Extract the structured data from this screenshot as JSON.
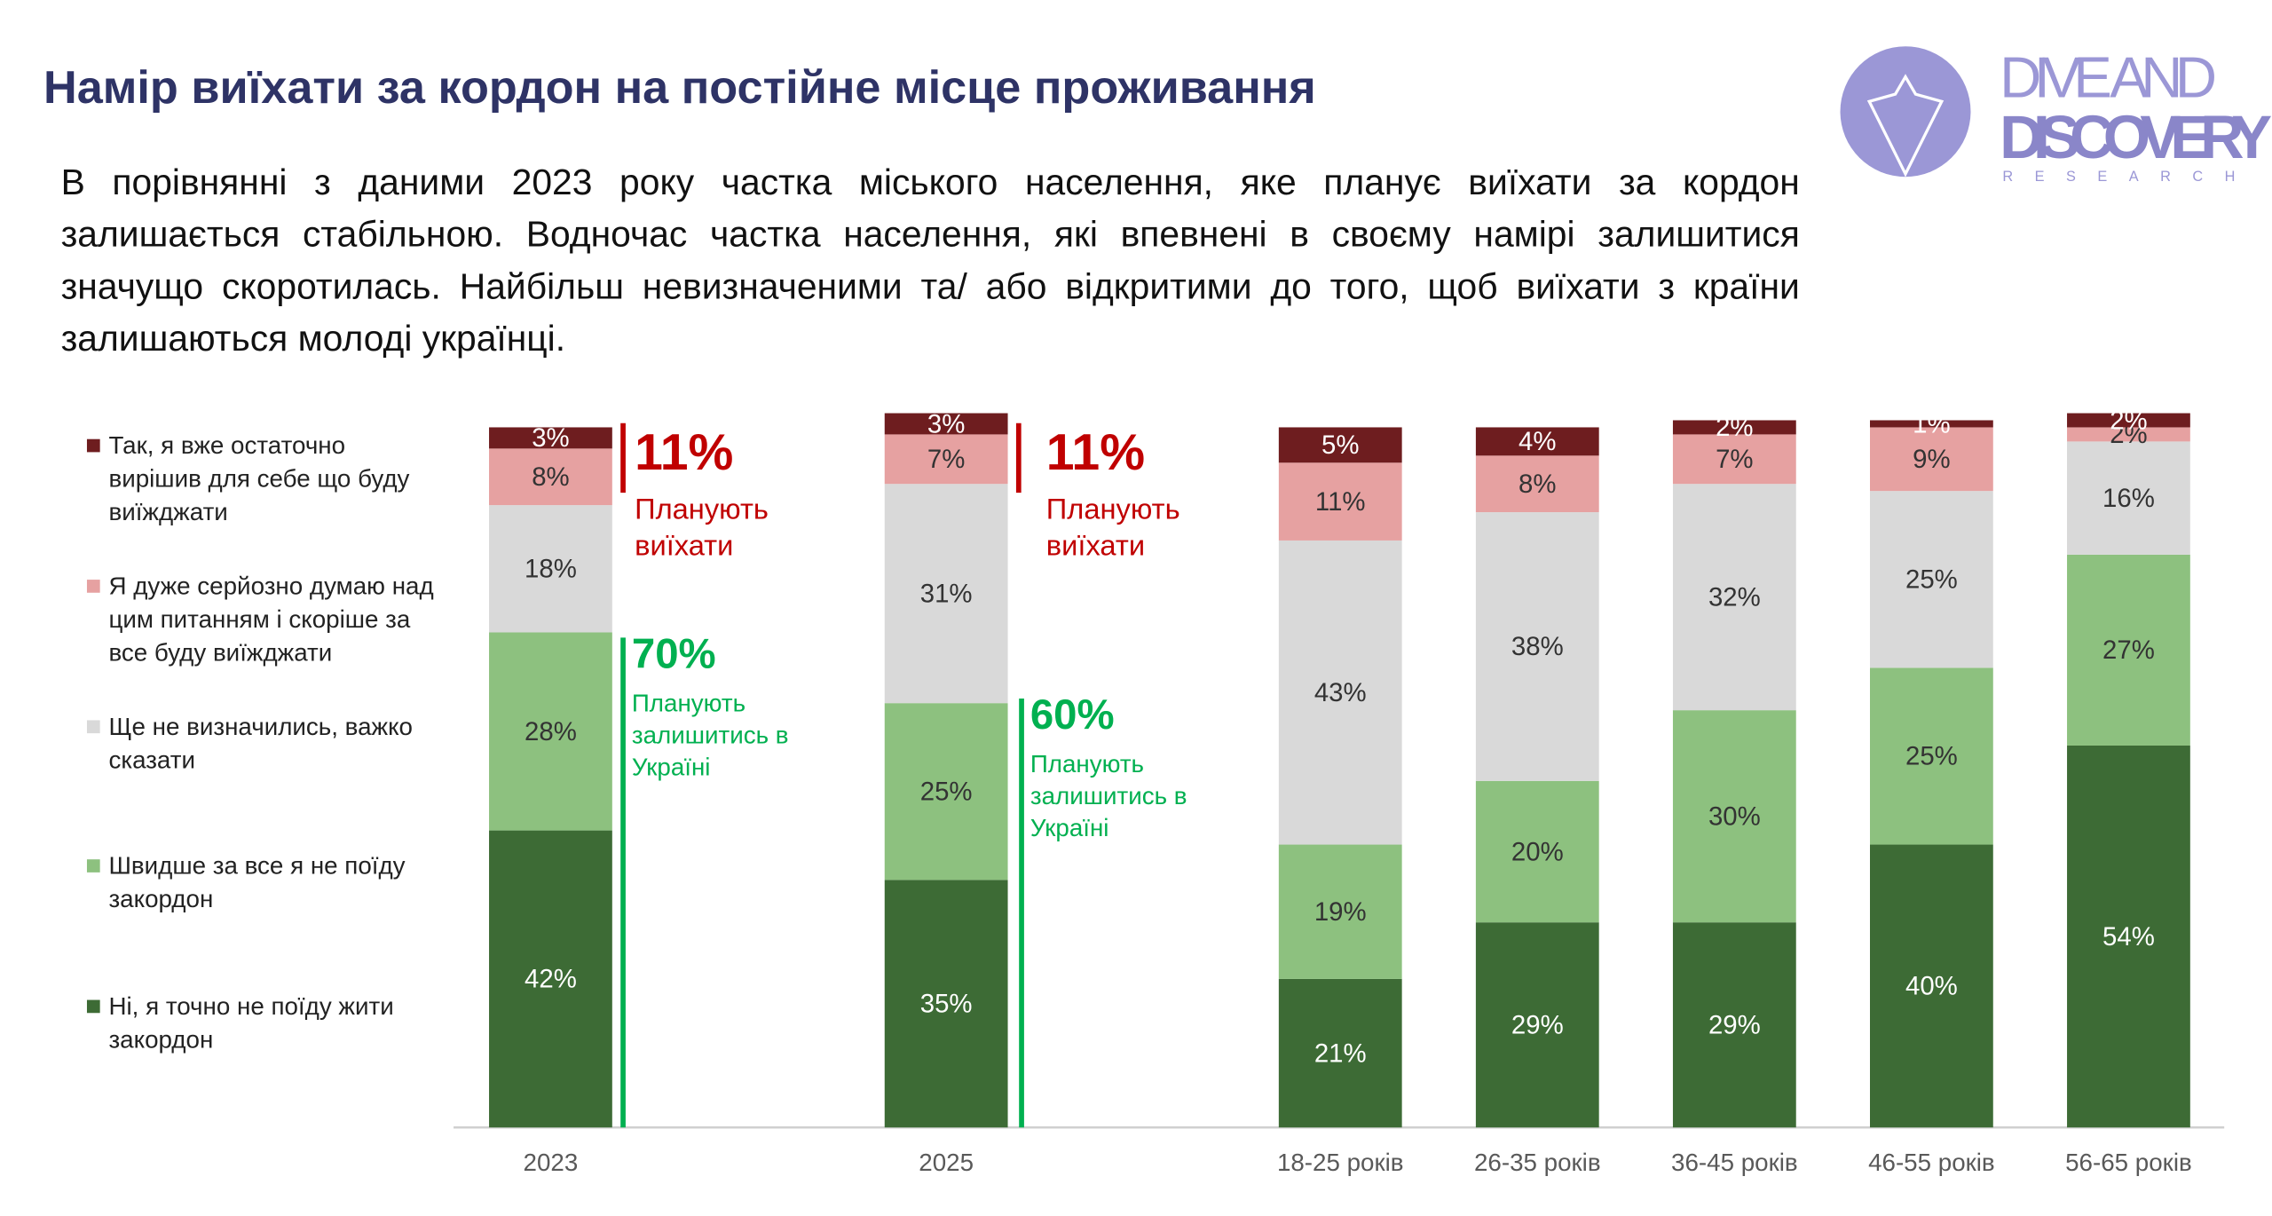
{
  "header": {
    "title": "Намір виїхати за кордон на постійне місце проживання",
    "text": "В порівнянні з даними 2023 року частка міського населення, яке планує виїхати за кордон залишається стабільною. Водночас частка населення, які впевнені в своєму намірі залишитися значущо скоротилась. Найбільш невизначеними та/ або відкритими до того, щоб виїхати з країни залишаються молоді українці."
  },
  "logo": {
    "line1": "DIVE AND",
    "line2": "DISCOVERY",
    "line3": "RESEARCH"
  },
  "annotations": [
    {
      "big": "11%",
      "text": "Планують виїхати",
      "color": "#c00000"
    },
    {
      "big": "70%",
      "text": "Планують залишитись в Україні",
      "color": "#00b050"
    },
    {
      "big": "11%",
      "text": "Планують виїхати",
      "color": "#c00000"
    },
    {
      "big": "60%",
      "text": "Планують залишитись в Україні",
      "color": "#00b050"
    }
  ],
  "chart_data": {
    "type": "stacked_bar",
    "categories": [
      "2023",
      "2025",
      "18-25 років",
      "26-35 років",
      "36-45 років",
      "46-55 років",
      "56-65 років"
    ],
    "ylim": [
      0,
      100
    ],
    "series": [
      {
        "name": "Так, я вже остаточно вирішив для себе що буду виїжджати",
        "color": "#6e1d1f",
        "values": [
          3,
          3,
          5,
          4,
          2,
          1,
          2
        ],
        "value_labels": [
          "3%",
          "3%",
          "5%",
          "4%",
          "2%",
          "1%",
          "2%"
        ]
      },
      {
        "name": "Я дуже серйозно думаю над цим питанням і скоріше за все буду виїжджати",
        "color": "#e6a1a1",
        "values": [
          8,
          7,
          11,
          8,
          7,
          9,
          2
        ],
        "value_labels": [
          "8%",
          "7%",
          "11%",
          "8%",
          "7%",
          "9%",
          "2%"
        ]
      },
      {
        "name": "Ще не визначились, важко сказати",
        "color": "#d9d9d9",
        "values": [
          18,
          31,
          43,
          38,
          32,
          25,
          16
        ],
        "value_labels": [
          "18%",
          "31%",
          "43%",
          "38%",
          "32%",
          "25%",
          "16%"
        ]
      },
      {
        "name": "Швидше за все я не поїду закордон",
        "color": "#8dc17f",
        "values": [
          28,
          25,
          19,
          20,
          30,
          25,
          27
        ],
        "value_labels": [
          "28%",
          "25%",
          "19%",
          "20%",
          "30%",
          "25%",
          "27%"
        ]
      },
      {
        "name": "Ні, я точно не поїду жити закордон",
        "color": "#3d6b35",
        "values": [
          42,
          35,
          21,
          29,
          29,
          40,
          54
        ],
        "value_labels": [
          "42%",
          "35%",
          "21%",
          "29%",
          "29%",
          "40%",
          "54%"
        ]
      }
    ]
  }
}
